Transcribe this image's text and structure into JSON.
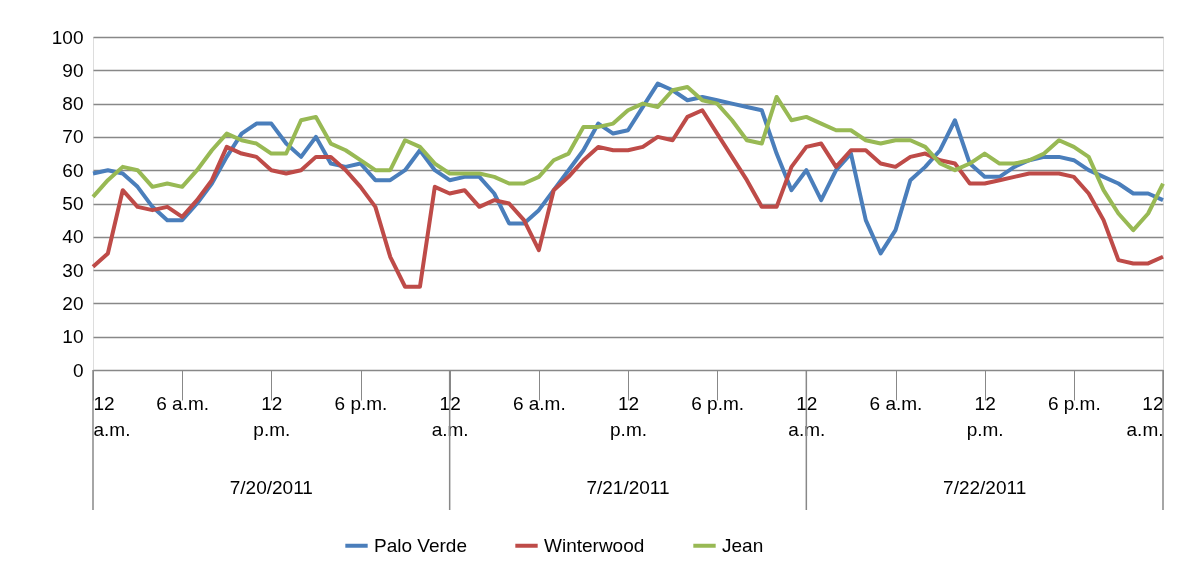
{
  "chart_data": {
    "type": "line",
    "x": [
      "2011-07-20T00:00",
      "2011-07-20T01:00",
      "2011-07-20T02:00",
      "2011-07-20T03:00",
      "2011-07-20T04:00",
      "2011-07-20T05:00",
      "2011-07-20T06:00",
      "2011-07-20T07:00",
      "2011-07-20T08:00",
      "2011-07-20T09:00",
      "2011-07-20T10:00",
      "2011-07-20T11:00",
      "2011-07-20T12:00",
      "2011-07-20T13:00",
      "2011-07-20T14:00",
      "2011-07-20T15:00",
      "2011-07-20T16:00",
      "2011-07-20T17:00",
      "2011-07-20T18:00",
      "2011-07-20T19:00",
      "2011-07-20T20:00",
      "2011-07-20T21:00",
      "2011-07-20T22:00",
      "2011-07-20T23:00",
      "2011-07-21T00:00",
      "2011-07-21T01:00",
      "2011-07-21T02:00",
      "2011-07-21T03:00",
      "2011-07-21T04:00",
      "2011-07-21T05:00",
      "2011-07-21T06:00",
      "2011-07-21T07:00",
      "2011-07-21T08:00",
      "2011-07-21T09:00",
      "2011-07-21T10:00",
      "2011-07-21T11:00",
      "2011-07-21T12:00",
      "2011-07-21T13:00",
      "2011-07-21T14:00",
      "2011-07-21T15:00",
      "2011-07-21T16:00",
      "2011-07-21T17:00",
      "2011-07-21T18:00",
      "2011-07-21T19:00",
      "2011-07-21T20:00",
      "2011-07-21T21:00",
      "2011-07-21T22:00",
      "2011-07-21T23:00",
      "2011-07-22T00:00",
      "2011-07-22T01:00",
      "2011-07-22T02:00",
      "2011-07-22T03:00",
      "2011-07-22T04:00",
      "2011-07-22T05:00",
      "2011-07-22T06:00",
      "2011-07-22T07:00",
      "2011-07-22T08:00",
      "2011-07-22T09:00",
      "2011-07-22T10:00",
      "2011-07-22T11:00",
      "2011-07-22T12:00",
      "2011-07-22T13:00",
      "2011-07-22T14:00",
      "2011-07-22T15:00",
      "2011-07-22T16:00",
      "2011-07-22T17:00",
      "2011-07-22T18:00",
      "2011-07-22T19:00",
      "2011-07-22T20:00",
      "2011-07-22T21:00",
      "2011-07-22T22:00",
      "2011-07-22T23:00",
      "2011-07-23T00:00"
    ],
    "series": [
      {
        "name": "Palo Verde",
        "color": "#4a7ebb",
        "values": [
          59,
          60,
          59,
          55,
          49,
          45,
          45,
          50,
          56,
          64,
          71,
          74,
          74,
          68,
          64,
          70,
          62,
          61,
          62,
          57,
          57,
          60,
          66,
          60,
          57,
          58,
          58,
          53,
          44,
          44,
          48,
          54,
          60,
          66,
          74,
          71,
          72,
          79,
          86,
          84,
          81,
          82,
          81,
          80,
          79,
          78,
          65,
          54,
          60,
          51,
          60,
          65,
          45,
          35,
          42,
          57,
          61,
          66,
          75,
          62,
          58,
          58,
          61,
          63,
          64,
          64,
          63,
          60,
          58,
          56,
          53,
          53,
          51
        ]
      },
      {
        "name": "Winterwood",
        "color": "#be4b48",
        "values": [
          31,
          35,
          54,
          49,
          48,
          49,
          46,
          51,
          57,
          67,
          65,
          64,
          60,
          59,
          60,
          64,
          64,
          60,
          55,
          49,
          34,
          25,
          25,
          55,
          53,
          54,
          49,
          51,
          50,
          45,
          36,
          54,
          58,
          63,
          67,
          66,
          66,
          67,
          70,
          69,
          76,
          78,
          71,
          64,
          57,
          49,
          49,
          61,
          67,
          68,
          61,
          66,
          66,
          62,
          61,
          64,
          65,
          63,
          62,
          56,
          56,
          57,
          58,
          59,
          59,
          59,
          58,
          53,
          45,
          33,
          32,
          32,
          34
        ]
      },
      {
        "name": "Jean",
        "color": "#98b954",
        "values": [
          52,
          57,
          61,
          60,
          55,
          56,
          55,
          60,
          66,
          71,
          69,
          68,
          65,
          65,
          75,
          76,
          68,
          66,
          63,
          60,
          60,
          69,
          67,
          62,
          59,
          59,
          59,
          58,
          56,
          56,
          58,
          63,
          65,
          73,
          73,
          74,
          78,
          80,
          79,
          84,
          85,
          81,
          80,
          75,
          69,
          68,
          82,
          75,
          76,
          74,
          72,
          72,
          69,
          68,
          69,
          69,
          67,
          62,
          60,
          62,
          65,
          62,
          62,
          63,
          65,
          69,
          67,
          64,
          54,
          47,
          42,
          47,
          56
        ]
      }
    ],
    "xlim": [
      "2011-07-20T00:00",
      "2011-07-23T00:00"
    ],
    "xticks": [
      {
        "value": "2011-07-20T00:00",
        "label": "12 a.m."
      },
      {
        "value": "2011-07-20T06:00",
        "label": "6 a.m."
      },
      {
        "value": "2011-07-20T12:00",
        "label": "12 p.m."
      },
      {
        "value": "2011-07-20T18:00",
        "label": "6 p.m."
      },
      {
        "value": "2011-07-21T00:00",
        "label": "12 a.m."
      },
      {
        "value": "2011-07-21T06:00",
        "label": "6 a.m."
      },
      {
        "value": "2011-07-21T12:00",
        "label": "12 p.m."
      },
      {
        "value": "2011-07-21T18:00",
        "label": "6 p.m."
      },
      {
        "value": "2011-07-22T00:00",
        "label": "12 a.m."
      },
      {
        "value": "2011-07-22T06:00",
        "label": "6 a.m."
      },
      {
        "value": "2011-07-22T12:00",
        "label": "12 p.m."
      },
      {
        "value": "2011-07-22T18:00",
        "label": "6 p.m."
      },
      {
        "value": "2011-07-23T00:00",
        "label": "12 a.m."
      }
    ],
    "ylim": [
      0,
      100
    ],
    "yticks": [
      0,
      10,
      20,
      30,
      40,
      50,
      60,
      70,
      80,
      90,
      100
    ],
    "grid": "y",
    "legend": "bottom",
    "marker": "none",
    "line_style": "solid",
    "annotations": [
      "7/20/2011",
      "7/21/2011",
      "7/22/2011"
    ]
  }
}
